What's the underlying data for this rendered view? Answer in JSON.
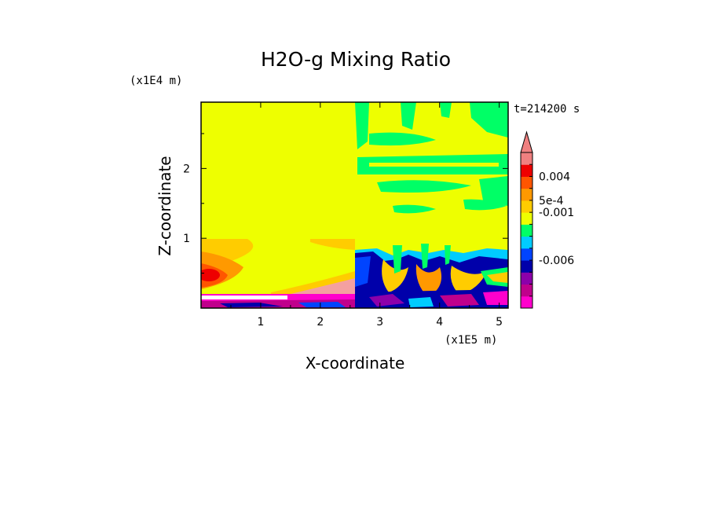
{
  "chart_data": {
    "type": "heatmap",
    "title": "H2O-g Mixing Ratio",
    "xlabel": "X-coordinate",
    "ylabel": "Z-coordinate",
    "x_unit": "(x1E5 m)",
    "y_unit": "(x1E4 m)",
    "time_label": "t=214200 s",
    "xlim": [
      0,
      5.15
    ],
    "ylim": [
      0,
      2.95
    ],
    "x_ticks": [
      "1",
      "2",
      "3",
      "4",
      "5"
    ],
    "y_ticks": [
      "1",
      "2"
    ],
    "colorbar_labels": [
      "0.004",
      "5e-4",
      "-0.001",
      "-0.006"
    ],
    "colorbar_colors": [
      "#ff00cc",
      "#c0008c",
      "#8c00aa",
      "#0000aa",
      "#0044ff",
      "#00ccff",
      "#00ff66",
      "#eeff00",
      "#ffcc00",
      "#ff9900",
      "#ff5500",
      "#ee0000",
      "#f08080"
    ],
    "colorbar_extend": "max"
  }
}
